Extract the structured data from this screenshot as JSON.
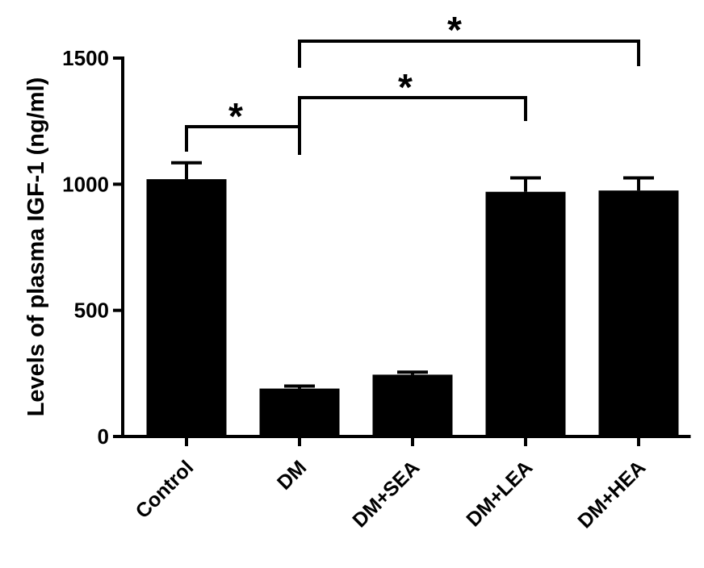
{
  "chart_data": {
    "type": "bar",
    "ylabel": "Levels of plasma IGF-1 (ng/ml)",
    "xlabel": "",
    "categories": [
      "Control",
      "DM",
      "DM+SEA",
      "DM+LEA",
      "DM+HEA"
    ],
    "values": [
      1020,
      190,
      245,
      970,
      975
    ],
    "errors": [
      65,
      10,
      10,
      55,
      50
    ],
    "ylim": [
      0,
      1500
    ],
    "yticks": [
      0,
      500,
      1000,
      1500
    ],
    "ytick_labels": [
      "0",
      "500",
      "1000",
      "1500"
    ],
    "grid": false,
    "bar_color": "#000000",
    "significance": [
      {
        "from": "Control",
        "to": "DM",
        "label": "*"
      },
      {
        "from": "DM",
        "to": "DM+LEA",
        "label": "*"
      },
      {
        "from": "DM",
        "to": "DM+HEA",
        "label": "*"
      }
    ]
  }
}
